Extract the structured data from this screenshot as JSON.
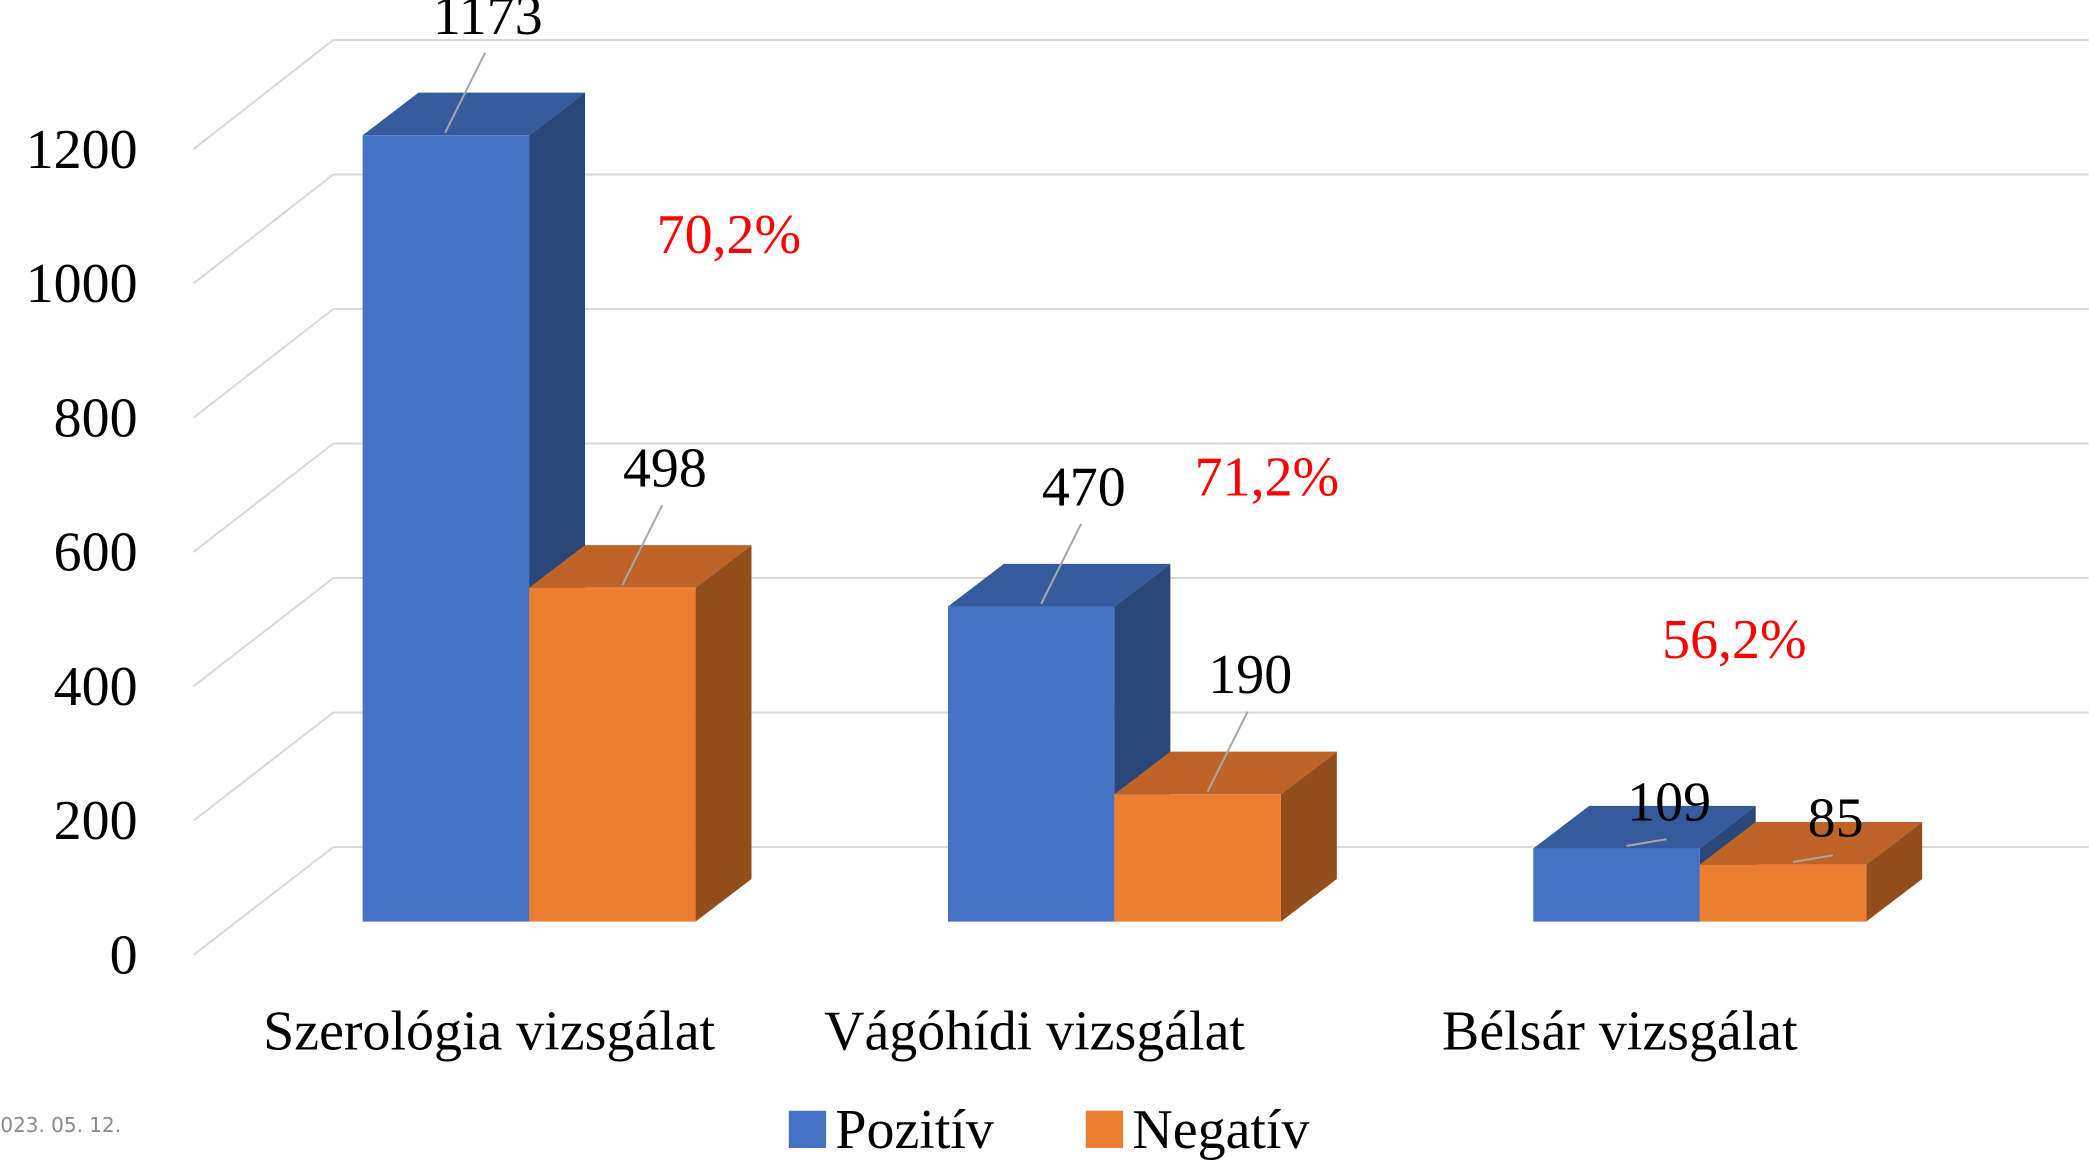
{
  "chart_data": {
    "type": "bar3d",
    "categories": [
      "Szerológia vizsgálat",
      "Vágóhídi vizsgálat",
      "Bélsár vizsgálat"
    ],
    "series": [
      {
        "name": "Pozitív",
        "color": "#4472c4",
        "values": [
          1173,
          470,
          109
        ]
      },
      {
        "name": "Negatív",
        "color": "#ed7d31",
        "values": [
          498,
          190,
          85
        ]
      }
    ],
    "ylim": [
      0,
      1200
    ],
    "yticks": [
      0,
      200,
      400,
      600,
      800,
      1000,
      1200
    ],
    "grid": true,
    "legend": "bottom",
    "annotations": [
      "70,2%",
      "71,2%",
      "56,2%"
    ],
    "footer": "023. 05. 12."
  }
}
